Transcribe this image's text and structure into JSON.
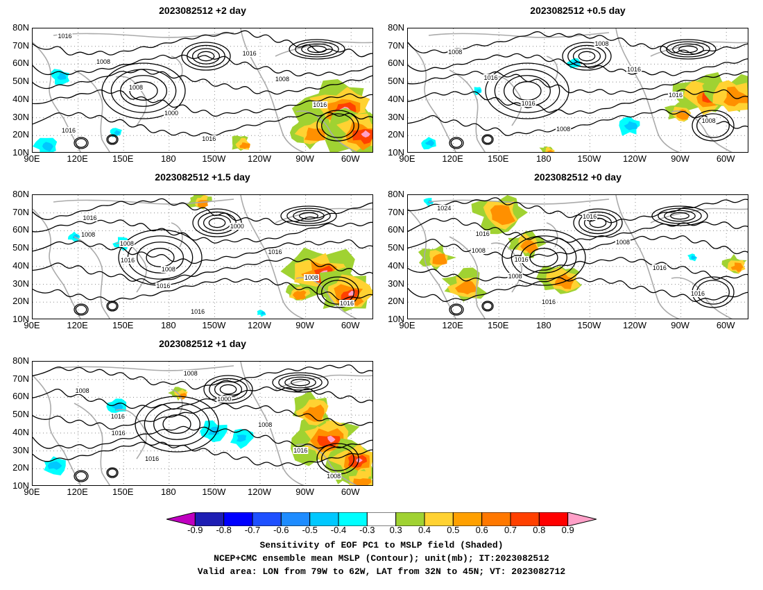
{
  "panels": [
    {
      "id": "p2",
      "title": "2023082512  +2 day",
      "contour_labels": [
        "1016",
        "1008",
        "1008",
        "1000",
        "1016",
        "1016",
        "1008",
        "1016",
        "1016"
      ]
    },
    {
      "id": "p05",
      "title": "2023082512  +0.5 day",
      "contour_labels": [
        "1008",
        "1016",
        "1016",
        "1008",
        "1008",
        "1016",
        "1016",
        "1008"
      ]
    },
    {
      "id": "p15",
      "title": "2023082512  +1.5 day",
      "contour_labels": [
        "1008",
        "1016",
        "1016",
        "1016",
        "1000",
        "1016",
        "1008",
        "1016",
        "1016",
        "1008",
        "1008"
      ]
    },
    {
      "id": "p0",
      "title": "2023082512  +0 day",
      "contour_labels": [
        "1008",
        "1008",
        "1016",
        "1016",
        "1008",
        "1016",
        "1016",
        "1024",
        "1016",
        "1016"
      ]
    },
    {
      "id": "p1",
      "title": "2023082512  +1 day",
      "contour_labels": [
        "1016",
        "1016",
        "1008",
        "1000",
        "1008",
        "1016",
        "1008",
        "1008",
        "1016"
      ]
    }
  ],
  "axes": {
    "lat_labels": [
      "80N",
      "70N",
      "60N",
      "50N",
      "40N",
      "30N",
      "20N",
      "10N"
    ],
    "lon_labels": [
      "90E",
      "120E",
      "150E",
      "180",
      "150W",
      "120W",
      "90W",
      "60W"
    ]
  },
  "colorbar": {
    "labels": [
      "-0.9",
      "-0.8",
      "-0.7",
      "-0.6",
      "-0.5",
      "-0.4",
      "-0.3",
      "0.3",
      "0.4",
      "0.5",
      "0.6",
      "0.7",
      "0.8",
      "0.9"
    ],
    "colors": [
      "#c000c0",
      "#1e1eb4",
      "#0000ff",
      "#1e50ff",
      "#1e8cff",
      "#00c8ff",
      "#00ffff",
      "#ffffff",
      "#a0d232",
      "#ffd232",
      "#ffa000",
      "#ff7800",
      "#ff4000",
      "#ff0000",
      "#ffa0c8"
    ]
  },
  "footer": {
    "line1": "Sensitivity of EOF PC1 to MSLP field (Shaded)",
    "line2": "NCEP+CMC ensemble mean MSLP (Contour); unit(mb); IT:2023082512",
    "line3": "Valid area: LON from 79W to 62W, LAT from 32N to 45N; VT: 2023082712"
  }
}
